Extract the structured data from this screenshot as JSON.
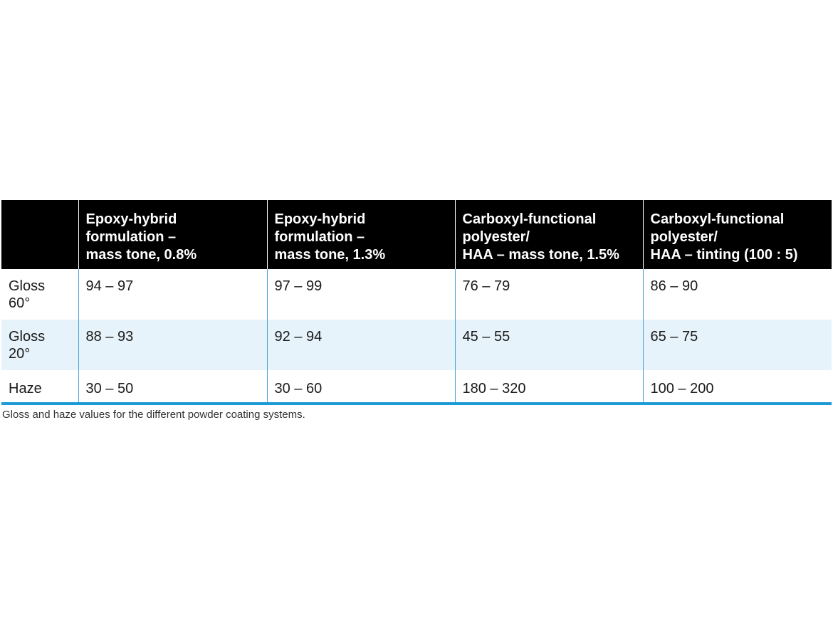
{
  "table": {
    "headers": [
      {
        "lines": []
      },
      {
        "lines": [
          "Epoxy-hybrid",
          "formulation –",
          "mass tone, 0.8%"
        ]
      },
      {
        "lines": [
          "Epoxy-hybrid",
          "formulation –",
          "mass tone, 1.3%"
        ]
      },
      {
        "lines": [
          "Carboxyl-functional",
          "polyester/",
          "HAA – mass tone, 1.5%"
        ]
      },
      {
        "lines": [
          "Carboxyl-functional",
          "polyester/",
          "HAA – tinting (100 : 5)"
        ]
      }
    ],
    "rows": [
      {
        "label_lines": [
          "Gloss",
          "60°"
        ],
        "values": [
          "94 – 97",
          "97 – 99",
          "76 – 79",
          "86 – 90"
        ]
      },
      {
        "label_lines": [
          "Gloss",
          "20°"
        ],
        "values": [
          "88 – 93",
          "92 – 94",
          "45 – 55",
          "65 – 75"
        ]
      },
      {
        "label_lines": [
          "Haze"
        ],
        "values": [
          "30 – 50",
          "30 – 60",
          "180 – 320",
          "100 – 200"
        ]
      }
    ],
    "colors": {
      "header_bg": "#000000",
      "alt_row_bg": "#e6f3fb",
      "accent": "#1e9ad6"
    }
  },
  "caption": "Gloss and haze values for the different powder coating systems."
}
